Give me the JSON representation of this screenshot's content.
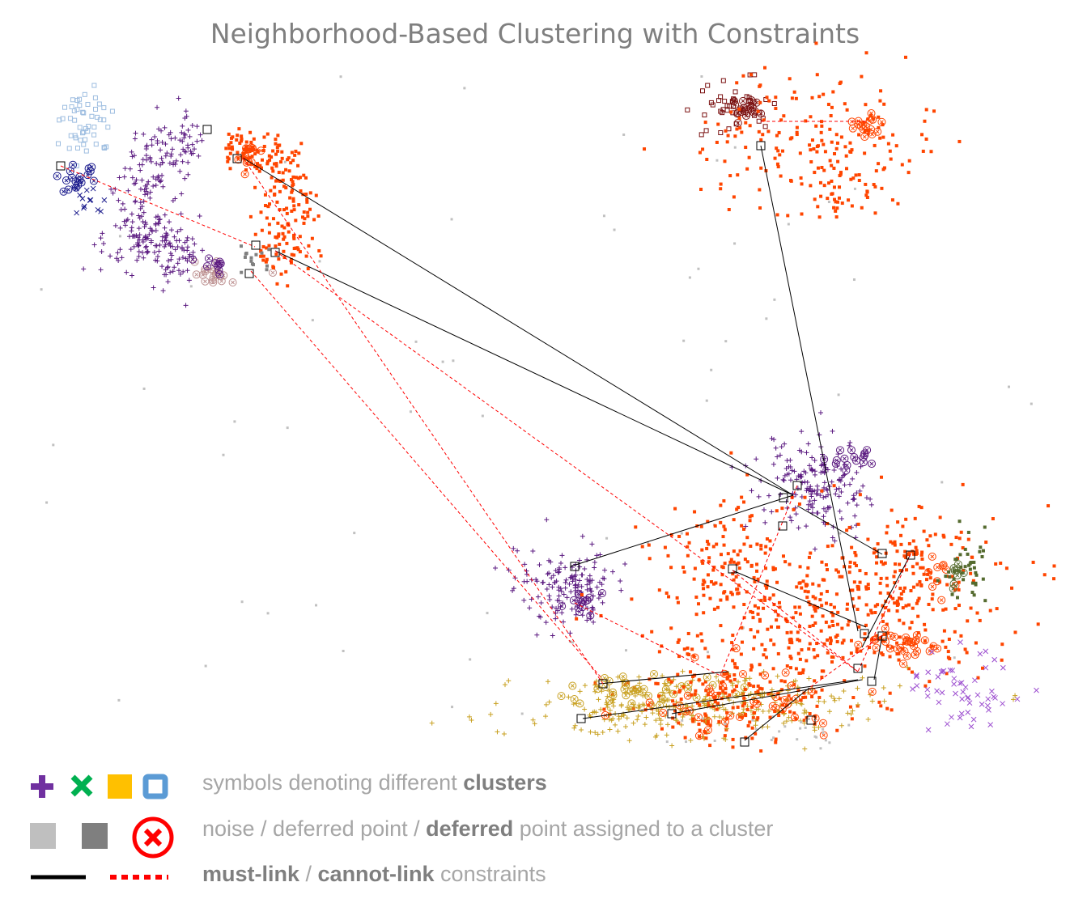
{
  "title": "Neighborhood-Based Clustering with Constraints",
  "legend": {
    "clusters": {
      "text_pre": "symbols denoting different",
      "text_bold": "clusters"
    },
    "noise": {
      "part1": "noise / deferred point / ",
      "bold": "deferred",
      "part2": " point assigned to a cluster"
    },
    "constraints": {
      "must": "must-link",
      "sep": " / ",
      "cannot": "cannot-link",
      "rest": " constraints"
    },
    "icons": [
      "plus-purple",
      "cross-green",
      "square-gold",
      "square-blue-outline",
      "noise-light-gray",
      "deferred-dark-gray",
      "deferred-assigned-red-circle-x",
      "must-link-black-line",
      "cannot-link-red-dotted-line"
    ]
  },
  "colors": {
    "purple": "#5b1a80",
    "orange": "#ff4500",
    "gold": "#c8a020",
    "lightblue": "#9dbde0",
    "darkblue": "#1a1a8c",
    "darkred": "#7a1010",
    "olive": "#556b2f",
    "violet": "#9d4fd0",
    "rosy": "#bc8f8f",
    "noise": "#c0c0c0",
    "deferred": "#808080",
    "mustlink": "#000000",
    "cannotlink": "#ff0000"
  }
}
